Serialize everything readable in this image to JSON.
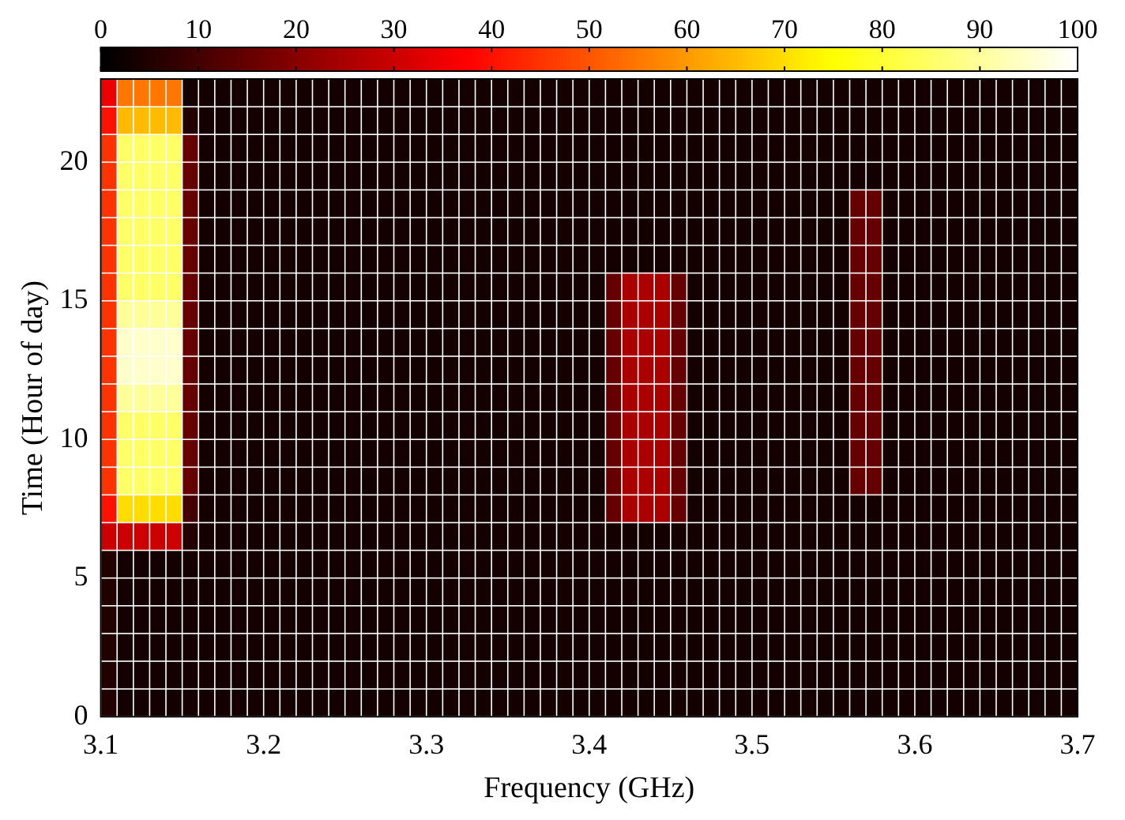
{
  "chart_data": {
    "type": "heatmap",
    "xlabel": "Frequency (GHz)",
    "ylabel": "Time (Hour of day)",
    "xlim": [
      3.1,
      3.7
    ],
    "xticks": [
      3.1,
      3.2,
      3.3,
      3.4,
      3.5,
      3.6,
      3.7
    ],
    "ylim": [
      0,
      23
    ],
    "yticks": [
      0,
      5,
      10,
      15,
      20
    ],
    "clim": [
      0,
      100
    ],
    "cticks": [
      0,
      10,
      20,
      30,
      40,
      50,
      60,
      70,
      80,
      90,
      100
    ],
    "x": [
      3.105,
      3.115,
      3.125,
      3.135,
      3.145,
      3.155,
      3.165,
      3.175,
      3.185,
      3.195,
      3.205,
      3.215,
      3.225,
      3.235,
      3.245,
      3.255,
      3.265,
      3.275,
      3.285,
      3.295,
      3.305,
      3.315,
      3.325,
      3.335,
      3.345,
      3.355,
      3.365,
      3.375,
      3.385,
      3.395,
      3.405,
      3.415,
      3.425,
      3.435,
      3.445,
      3.455,
      3.465,
      3.475,
      3.485,
      3.495,
      3.505,
      3.515,
      3.525,
      3.535,
      3.545,
      3.555,
      3.565,
      3.575,
      3.585,
      3.595,
      3.605,
      3.615,
      3.625,
      3.635,
      3.645,
      3.655,
      3.665,
      3.675,
      3.685,
      3.695
    ],
    "y": [
      22.5,
      21.5,
      20.5,
      19.5,
      18.5,
      17.5,
      16.5,
      15.5,
      14.5,
      13.5,
      12.5,
      11.5,
      10.5,
      9.5,
      8.5,
      7.5,
      6.5,
      5.5,
      4.5,
      3.5,
      2.5,
      1.5,
      0.5
    ],
    "cells": [
      [
        35,
        55,
        55,
        55,
        55,
        3,
        3,
        3,
        3,
        3,
        3,
        3,
        3,
        3,
        3,
        3,
        3,
        3,
        3,
        3,
        3,
        3,
        3,
        3,
        3,
        3,
        3,
        3,
        3,
        3,
        3,
        3,
        3,
        3,
        3,
        3,
        3,
        3,
        3,
        3,
        3,
        3,
        3,
        3,
        3,
        3,
        3,
        3,
        3,
        3,
        3,
        3,
        3,
        3,
        3,
        3,
        3,
        3,
        3,
        3
      ],
      [
        40,
        65,
        65,
        65,
        65,
        5,
        3,
        3,
        3,
        3,
        3,
        3,
        3,
        3,
        3,
        3,
        3,
        3,
        3,
        3,
        3,
        3,
        3,
        3,
        3,
        3,
        3,
        3,
        3,
        3,
        3,
        3,
        3,
        3,
        3,
        3,
        3,
        3,
        3,
        3,
        3,
        3,
        3,
        3,
        3,
        3,
        3,
        3,
        3,
        3,
        3,
        3,
        3,
        3,
        3,
        3,
        3,
        3,
        3,
        3
      ],
      [
        45,
        85,
        85,
        85,
        85,
        15,
        3,
        3,
        3,
        3,
        3,
        3,
        3,
        3,
        3,
        3,
        3,
        3,
        3,
        3,
        3,
        3,
        3,
        3,
        3,
        3,
        3,
        3,
        3,
        3,
        3,
        3,
        3,
        3,
        3,
        3,
        3,
        3,
        3,
        3,
        3,
        3,
        3,
        3,
        3,
        3,
        3,
        3,
        3,
        3,
        3,
        3,
        3,
        3,
        3,
        3,
        3,
        3,
        3,
        3
      ],
      [
        45,
        85,
        85,
        85,
        85,
        15,
        3,
        3,
        3,
        3,
        3,
        3,
        3,
        3,
        3,
        3,
        3,
        3,
        3,
        3,
        3,
        3,
        3,
        3,
        3,
        3,
        3,
        3,
        3,
        3,
        3,
        3,
        3,
        3,
        3,
        3,
        3,
        3,
        3,
        3,
        3,
        3,
        3,
        3,
        3,
        3,
        3,
        3,
        3,
        3,
        3,
        3,
        3,
        3,
        3,
        3,
        3,
        3,
        3,
        3
      ],
      [
        45,
        85,
        85,
        85,
        85,
        15,
        3,
        3,
        3,
        3,
        3,
        3,
        3,
        3,
        3,
        3,
        3,
        3,
        3,
        3,
        3,
        3,
        3,
        3,
        3,
        3,
        3,
        3,
        3,
        3,
        3,
        3,
        3,
        3,
        3,
        3,
        3,
        3,
        3,
        3,
        3,
        3,
        3,
        3,
        3,
        3,
        15,
        15,
        3,
        3,
        3,
        3,
        3,
        3,
        3,
        3,
        3,
        3,
        3,
        3
      ],
      [
        45,
        85,
        85,
        85,
        85,
        15,
        3,
        3,
        3,
        3,
        3,
        3,
        3,
        3,
        3,
        3,
        3,
        3,
        3,
        3,
        3,
        3,
        3,
        3,
        3,
        3,
        3,
        3,
        3,
        3,
        3,
        3,
        3,
        3,
        3,
        3,
        3,
        3,
        3,
        3,
        3,
        3,
        3,
        3,
        3,
        3,
        15,
        15,
        3,
        3,
        3,
        3,
        3,
        3,
        3,
        3,
        3,
        3,
        3,
        3
      ],
      [
        45,
        85,
        85,
        85,
        85,
        15,
        3,
        3,
        3,
        3,
        3,
        3,
        3,
        3,
        3,
        3,
        3,
        3,
        3,
        3,
        3,
        3,
        3,
        3,
        3,
        3,
        3,
        3,
        3,
        3,
        3,
        3,
        3,
        3,
        3,
        3,
        3,
        3,
        3,
        3,
        3,
        3,
        3,
        3,
        3,
        3,
        15,
        15,
        3,
        3,
        3,
        3,
        3,
        3,
        3,
        3,
        3,
        3,
        3,
        3
      ],
      [
        45,
        85,
        85,
        85,
        85,
        15,
        3,
        3,
        3,
        3,
        3,
        3,
        3,
        3,
        3,
        3,
        3,
        3,
        3,
        3,
        3,
        3,
        3,
        3,
        3,
        3,
        3,
        3,
        3,
        3,
        3,
        15,
        25,
        25,
        25,
        15,
        3,
        3,
        3,
        3,
        3,
        3,
        3,
        3,
        3,
        3,
        15,
        15,
        3,
        3,
        3,
        3,
        3,
        3,
        3,
        3,
        3,
        3,
        3,
        3
      ],
      [
        45,
        90,
        90,
        90,
        90,
        15,
        3,
        3,
        3,
        3,
        3,
        3,
        3,
        3,
        3,
        3,
        3,
        3,
        3,
        3,
        3,
        3,
        3,
        3,
        3,
        3,
        3,
        3,
        3,
        3,
        3,
        15,
        25,
        25,
        25,
        15,
        3,
        3,
        3,
        3,
        3,
        3,
        3,
        3,
        3,
        3,
        15,
        15,
        3,
        3,
        3,
        3,
        3,
        3,
        3,
        3,
        3,
        3,
        3,
        3
      ],
      [
        45,
        95,
        95,
        95,
        95,
        15,
        3,
        3,
        3,
        3,
        3,
        3,
        3,
        3,
        3,
        3,
        3,
        3,
        3,
        3,
        3,
        3,
        3,
        3,
        3,
        3,
        3,
        3,
        3,
        3,
        3,
        15,
        25,
        25,
        25,
        15,
        3,
        3,
        3,
        3,
        3,
        3,
        3,
        3,
        3,
        3,
        15,
        15,
        3,
        3,
        3,
        3,
        3,
        3,
        3,
        3,
        3,
        3,
        3,
        3
      ],
      [
        45,
        95,
        95,
        95,
        95,
        15,
        3,
        3,
        3,
        3,
        3,
        3,
        3,
        3,
        3,
        3,
        3,
        3,
        3,
        3,
        3,
        3,
        3,
        3,
        3,
        3,
        3,
        3,
        3,
        3,
        3,
        15,
        25,
        25,
        25,
        15,
        3,
        3,
        3,
        3,
        3,
        3,
        3,
        3,
        3,
        3,
        15,
        15,
        3,
        3,
        3,
        3,
        3,
        3,
        3,
        3,
        3,
        3,
        3,
        3
      ],
      [
        45,
        90,
        90,
        90,
        90,
        15,
        3,
        3,
        3,
        3,
        3,
        3,
        3,
        3,
        3,
        3,
        3,
        3,
        3,
        3,
        3,
        3,
        3,
        3,
        3,
        3,
        3,
        3,
        3,
        3,
        3,
        15,
        25,
        25,
        25,
        15,
        3,
        3,
        3,
        3,
        3,
        3,
        3,
        3,
        3,
        3,
        15,
        15,
        3,
        3,
        3,
        3,
        3,
        3,
        3,
        3,
        3,
        3,
        3,
        3
      ],
      [
        45,
        85,
        85,
        85,
        85,
        15,
        3,
        3,
        3,
        3,
        3,
        3,
        3,
        3,
        3,
        3,
        3,
        3,
        3,
        3,
        3,
        3,
        3,
        3,
        3,
        3,
        3,
        3,
        3,
        3,
        3,
        15,
        25,
        25,
        25,
        15,
        3,
        3,
        3,
        3,
        3,
        3,
        3,
        3,
        3,
        3,
        15,
        15,
        3,
        3,
        3,
        3,
        3,
        3,
        3,
        3,
        3,
        3,
        3,
        3
      ],
      [
        45,
        85,
        85,
        85,
        85,
        15,
        3,
        3,
        3,
        3,
        3,
        3,
        3,
        3,
        3,
        3,
        3,
        3,
        3,
        3,
        3,
        3,
        3,
        3,
        3,
        3,
        3,
        3,
        3,
        3,
        3,
        15,
        25,
        25,
        25,
        15,
        3,
        3,
        3,
        3,
        3,
        3,
        3,
        3,
        3,
        3,
        15,
        15,
        3,
        3,
        3,
        3,
        3,
        3,
        3,
        3,
        3,
        3,
        3,
        3
      ],
      [
        45,
        85,
        85,
        85,
        85,
        15,
        3,
        3,
        3,
        3,
        3,
        3,
        3,
        3,
        3,
        3,
        3,
        3,
        3,
        3,
        3,
        3,
        3,
        3,
        3,
        3,
        3,
        3,
        3,
        3,
        3,
        15,
        25,
        25,
        25,
        15,
        3,
        3,
        3,
        3,
        3,
        3,
        3,
        3,
        3,
        3,
        15,
        15,
        3,
        3,
        3,
        3,
        3,
        3,
        3,
        3,
        3,
        3,
        3,
        3
      ],
      [
        40,
        70,
        70,
        70,
        70,
        10,
        3,
        3,
        3,
        3,
        3,
        3,
        3,
        3,
        3,
        3,
        3,
        3,
        3,
        3,
        3,
        3,
        3,
        3,
        3,
        3,
        3,
        3,
        3,
        3,
        3,
        15,
        25,
        25,
        25,
        15,
        3,
        3,
        3,
        3,
        3,
        3,
        3,
        3,
        3,
        3,
        3,
        3,
        3,
        3,
        3,
        3,
        3,
        3,
        3,
        3,
        3,
        3,
        3,
        3
      ],
      [
        30,
        30,
        30,
        30,
        30,
        5,
        3,
        3,
        3,
        3,
        3,
        3,
        3,
        3,
        3,
        3,
        3,
        3,
        3,
        3,
        3,
        3,
        3,
        3,
        3,
        3,
        3,
        3,
        3,
        3,
        3,
        3,
        3,
        3,
        3,
        3,
        3,
        3,
        3,
        3,
        3,
        3,
        3,
        3,
        3,
        3,
        3,
        3,
        3,
        3,
        3,
        3,
        3,
        3,
        3,
        3,
        3,
        3,
        3,
        3
      ],
      [
        5,
        3,
        3,
        3,
        3,
        3,
        3,
        3,
        3,
        3,
        3,
        3,
        3,
        3,
        3,
        3,
        3,
        3,
        3,
        3,
        3,
        3,
        3,
        3,
        3,
        3,
        3,
        3,
        3,
        3,
        3,
        3,
        3,
        3,
        3,
        3,
        3,
        3,
        3,
        3,
        3,
        3,
        3,
        3,
        3,
        3,
        3,
        3,
        3,
        3,
        3,
        3,
        3,
        3,
        3,
        3,
        3,
        3,
        3,
        3
      ],
      [
        5,
        3,
        3,
        3,
        3,
        3,
        3,
        3,
        3,
        3,
        3,
        3,
        3,
        3,
        3,
        3,
        3,
        3,
        3,
        3,
        3,
        3,
        3,
        3,
        3,
        3,
        3,
        3,
        3,
        3,
        3,
        3,
        3,
        3,
        3,
        3,
        3,
        3,
        3,
        3,
        3,
        3,
        3,
        3,
        3,
        3,
        3,
        3,
        3,
        3,
        3,
        3,
        3,
        3,
        3,
        3,
        3,
        3,
        3,
        3
      ],
      [
        5,
        3,
        3,
        3,
        3,
        3,
        3,
        3,
        3,
        3,
        3,
        3,
        3,
        3,
        3,
        3,
        3,
        3,
        3,
        3,
        3,
        3,
        3,
        3,
        3,
        3,
        3,
        3,
        3,
        3,
        3,
        3,
        3,
        3,
        3,
        3,
        3,
        3,
        3,
        3,
        3,
        3,
        3,
        3,
        3,
        3,
        3,
        3,
        3,
        3,
        3,
        3,
        3,
        3,
        3,
        3,
        3,
        3,
        3,
        3
      ],
      [
        5,
        3,
        3,
        3,
        3,
        3,
        3,
        3,
        3,
        3,
        3,
        3,
        3,
        3,
        3,
        3,
        3,
        3,
        3,
        3,
        3,
        3,
        3,
        3,
        3,
        3,
        3,
        3,
        3,
        3,
        3,
        3,
        3,
        3,
        3,
        3,
        3,
        3,
        3,
        3,
        3,
        3,
        3,
        3,
        3,
        3,
        3,
        3,
        3,
        3,
        3,
        3,
        3,
        3,
        3,
        3,
        3,
        3,
        3,
        3
      ],
      [
        5,
        3,
        3,
        3,
        3,
        3,
        3,
        3,
        3,
        3,
        3,
        3,
        3,
        3,
        3,
        3,
        3,
        3,
        3,
        3,
        3,
        3,
        3,
        3,
        3,
        3,
        3,
        3,
        3,
        3,
        3,
        3,
        3,
        3,
        3,
        3,
        3,
        3,
        3,
        3,
        3,
        3,
        3,
        3,
        3,
        3,
        3,
        3,
        3,
        3,
        3,
        3,
        3,
        3,
        3,
        3,
        3,
        3,
        3,
        3
      ],
      [
        5,
        3,
        3,
        3,
        3,
        3,
        3,
        3,
        3,
        3,
        3,
        3,
        3,
        3,
        3,
        3,
        3,
        3,
        3,
        3,
        3,
        3,
        3,
        3,
        3,
        3,
        3,
        3,
        3,
        3,
        3,
        3,
        3,
        3,
        3,
        3,
        3,
        3,
        3,
        3,
        3,
        3,
        3,
        3,
        3,
        3,
        3,
        3,
        3,
        3,
        3,
        3,
        3,
        3,
        3,
        3,
        3,
        3,
        3,
        3
      ]
    ]
  }
}
